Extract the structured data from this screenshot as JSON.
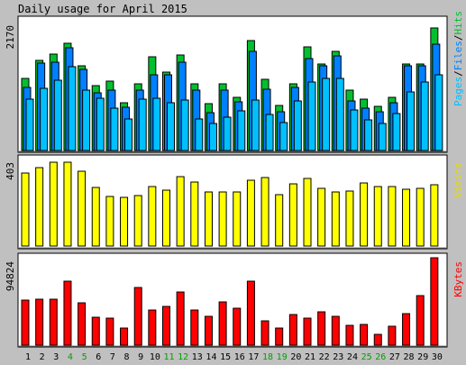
{
  "title": "Daily usage for April 2015",
  "colors": {
    "hits": "#00c030",
    "files": "#0080ff",
    "pages": "#00c0ff",
    "visits": "#ffff00",
    "kbytes": "#ff0000",
    "weekend": "#00a000",
    "weekday": "#000000",
    "background": "#c0c0c0",
    "panel": "#ffffff"
  },
  "chart_data": [
    {
      "type": "bar",
      "title": "Daily usage for April 2015",
      "ymax_label": "2170",
      "legend": [
        "Pages",
        "Files",
        "Hits"
      ],
      "ylim": [
        0,
        2170
      ],
      "categories": [
        "1",
        "2",
        "3",
        "4",
        "5",
        "6",
        "7",
        "8",
        "9",
        "10",
        "11",
        "12",
        "13",
        "14",
        "15",
        "16",
        "17",
        "18",
        "19",
        "20",
        "21",
        "22",
        "23",
        "24",
        "25",
        "26",
        "27",
        "28",
        "29",
        "30"
      ],
      "weekend_days": [
        "4",
        "5",
        "11",
        "12",
        "18",
        "19",
        "25",
        "26"
      ],
      "series": [
        {
          "name": "Hits",
          "values": [
            1200,
            1500,
            1600,
            1780,
            1400,
            1080,
            1150,
            800,
            1100,
            1560,
            1300,
            1590,
            1110,
            780,
            1100,
            890,
            1830,
            1180,
            750,
            1100,
            1720,
            1440,
            1650,
            1010,
            860,
            740,
            880,
            1440,
            1430,
            2030
          ]
        },
        {
          "name": "Files",
          "values": [
            1050,
            1450,
            1460,
            1700,
            1340,
            960,
            1000,
            720,
            1000,
            1260,
            1260,
            1460,
            1000,
            630,
            1000,
            810,
            1640,
            1020,
            650,
            1050,
            1530,
            1400,
            1570,
            820,
            700,
            640,
            800,
            1400,
            1410,
            1770
          ]
        },
        {
          "name": "Pages",
          "values": [
            850,
            1040,
            1170,
            1390,
            1010,
            870,
            700,
            520,
            850,
            870,
            790,
            840,
            520,
            450,
            560,
            660,
            840,
            600,
            460,
            830,
            1130,
            1190,
            1200,
            680,
            510,
            450,
            620,
            980,
            1140,
            1260
          ]
        }
      ]
    },
    {
      "type": "bar",
      "ymax_label": "403",
      "legend": [
        "Visits"
      ],
      "ylim": [
        0,
        403
      ],
      "series": [
        {
          "name": "Visits",
          "values": [
            340,
            365,
            390,
            392,
            348,
            273,
            230,
            227,
            235,
            275,
            262,
            324,
            299,
            250,
            253,
            251,
            306,
            318,
            239,
            291,
            313,
            270,
            251,
            255,
            292,
            276,
            277,
            264,
            269,
            286
          ]
        }
      ]
    },
    {
      "type": "bar",
      "ymax_label": "94824",
      "legend": [
        "KBytes"
      ],
      "ylim": [
        0,
        94824
      ],
      "series": [
        {
          "name": "KBytes",
          "values": [
            48800,
            49700,
            49800,
            69500,
            46000,
            29900,
            29000,
            18900,
            63000,
            37900,
            41700,
            58100,
            38500,
            31500,
            46500,
            40400,
            69200,
            26300,
            18500,
            32800,
            29000,
            36400,
            30900,
            21500,
            22300,
            11900,
            20700,
            34400,
            53600,
            95000
          ]
        }
      ]
    }
  ]
}
